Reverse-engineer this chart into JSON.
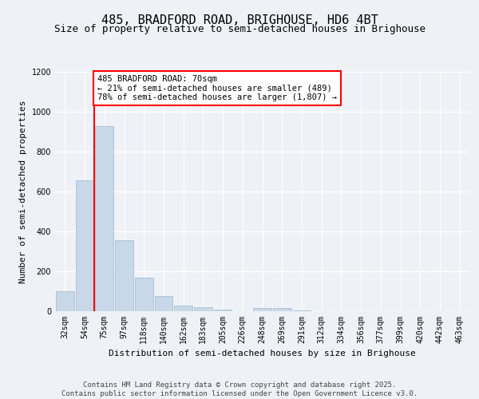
{
  "title1": "485, BRADFORD ROAD, BRIGHOUSE, HD6 4BT",
  "title2": "Size of property relative to semi-detached houses in Brighouse",
  "xlabel": "Distribution of semi-detached houses by size in Brighouse",
  "ylabel": "Number of semi-detached properties",
  "categories": [
    "32sqm",
    "54sqm",
    "75sqm",
    "97sqm",
    "118sqm",
    "140sqm",
    "162sqm",
    "183sqm",
    "205sqm",
    "226sqm",
    "248sqm",
    "269sqm",
    "291sqm",
    "312sqm",
    "334sqm",
    "356sqm",
    "377sqm",
    "399sqm",
    "420sqm",
    "442sqm",
    "463sqm"
  ],
  "values": [
    100,
    655,
    930,
    355,
    170,
    75,
    28,
    20,
    10,
    0,
    15,
    15,
    5,
    0,
    0,
    0,
    0,
    0,
    0,
    0,
    0
  ],
  "bar_color": "#c8d8e8",
  "bar_edge_color": "#a0b8cc",
  "vline_x": 1.5,
  "vline_color": "red",
  "annotation_text": "485 BRADFORD ROAD: 70sqm\n← 21% of semi-detached houses are smaller (489)\n78% of semi-detached houses are larger (1,807) →",
  "annotation_box_color": "white",
  "annotation_box_edge": "red",
  "ylim": [
    0,
    1200
  ],
  "yticks": [
    0,
    200,
    400,
    600,
    800,
    1000,
    1200
  ],
  "bg_color": "#eef2f6",
  "plot_bg_color": "#eef2f6",
  "footer": "Contains HM Land Registry data © Crown copyright and database right 2025.\nContains public sector information licensed under the Open Government Licence v3.0.",
  "title1_fontsize": 11,
  "title2_fontsize": 9,
  "xlabel_fontsize": 8,
  "ylabel_fontsize": 8,
  "tick_fontsize": 7,
  "footer_fontsize": 6.5,
  "annot_fontsize": 7.5
}
